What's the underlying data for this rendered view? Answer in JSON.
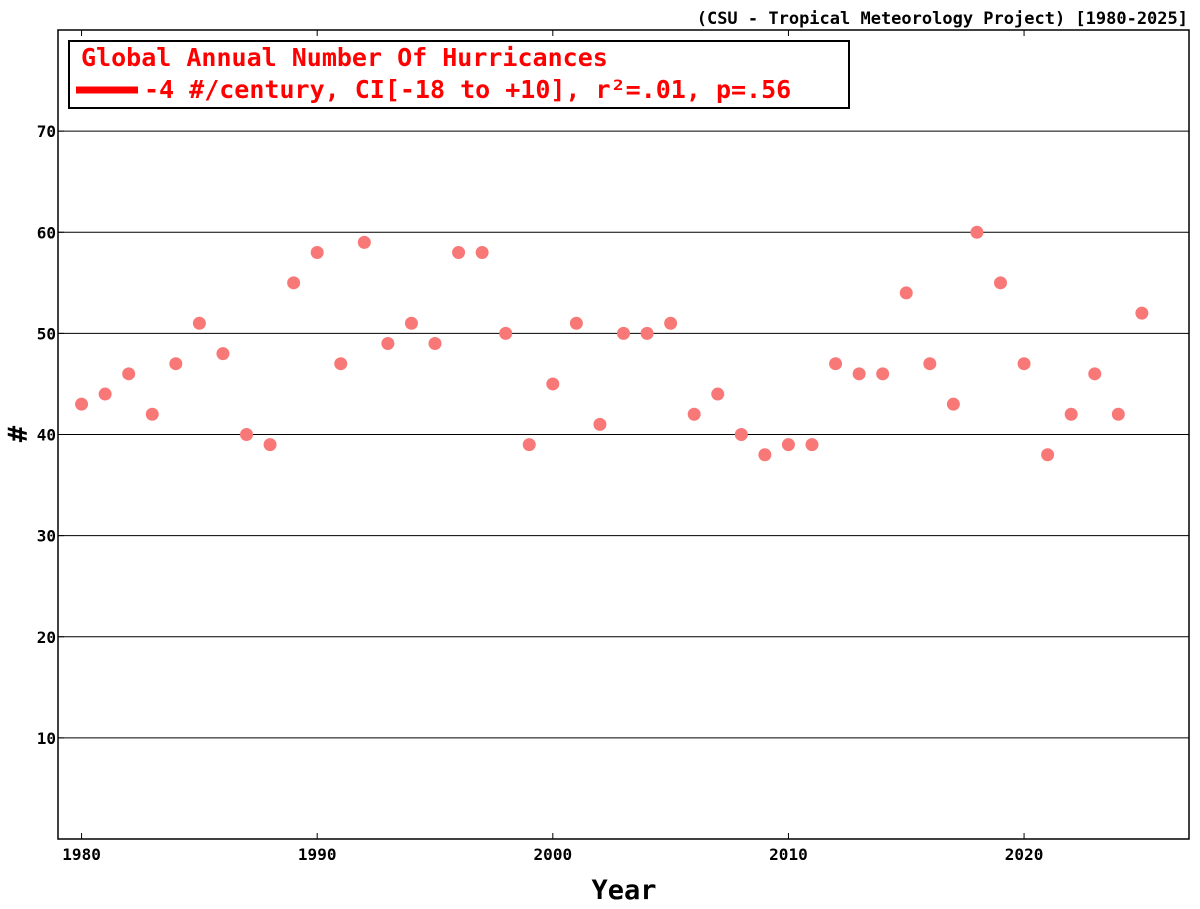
{
  "source_note": "(CSU - Tropical Meteorology Project) [1980-2025]",
  "legend": {
    "title": "Global Annual Number Of Hurricances",
    "trend_label": "-4 #/century, CI[-18 to +10], r²=.01, p=.56"
  },
  "colors": {
    "points": "#f87878",
    "legend_text": "#ff0000",
    "trend_line": "#ff0000",
    "grid": "#000000"
  },
  "chart_data": {
    "type": "scatter",
    "xlabel": "Year",
    "ylabel": "#",
    "xlim": [
      1979,
      2027
    ],
    "ylim": [
      0,
      80
    ],
    "x_ticks": [
      1980,
      1990,
      2000,
      2010,
      2020
    ],
    "y_ticks": [
      10,
      20,
      30,
      40,
      50,
      60,
      70
    ],
    "grid": "horizontal",
    "legend_position": "top-left",
    "x": [
      1980,
      1981,
      1982,
      1983,
      1984,
      1985,
      1986,
      1987,
      1988,
      1989,
      1990,
      1991,
      1992,
      1993,
      1994,
      1995,
      1996,
      1997,
      1998,
      1999,
      2000,
      2001,
      2002,
      2003,
      2004,
      2005,
      2006,
      2007,
      2008,
      2009,
      2010,
      2011,
      2012,
      2013,
      2014,
      2015,
      2016,
      2017,
      2018,
      2019,
      2020,
      2021,
      2022,
      2023,
      2024,
      2025
    ],
    "y": [
      43,
      44,
      46,
      42,
      47,
      51,
      48,
      40,
      39,
      55,
      58,
      47,
      59,
      49,
      51,
      49,
      58,
      58,
      50,
      39,
      45,
      51,
      41,
      50,
      50,
      51,
      42,
      44,
      40,
      38,
      39,
      39,
      47,
      46,
      46,
      54,
      47,
      43,
      60,
      55,
      47,
      38,
      42,
      46,
      42,
      52
    ]
  }
}
